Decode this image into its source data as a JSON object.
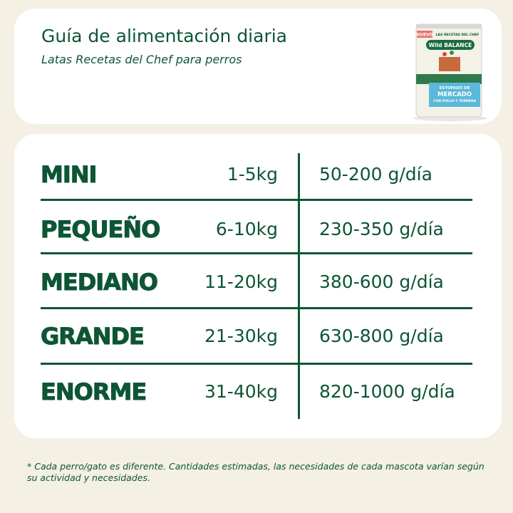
{
  "header": {
    "title": "Guía de alimentación diaria",
    "subtitle": "Latas Recetas del Chef para perros"
  },
  "product_image": {
    "badge": "NUEVO",
    "line": "LAS RECETAS DEL CHEF",
    "brand": "Wild BALANCE",
    "recipe": "ESTOFADO DE",
    "recipe_name": "MERCADO",
    "recipe_detail": "CON POLLO Y TERNERA"
  },
  "table": {
    "rows": [
      {
        "size": "MINI",
        "weight": "1-5kg",
        "portion": "50-200 g/día"
      },
      {
        "size": "PEQUEÑO",
        "weight": "6-10kg",
        "portion": "230-350 g/día"
      },
      {
        "size": "MEDIANO",
        "weight": "11-20kg",
        "portion": "380-600 g/día"
      },
      {
        "size": "GRANDE",
        "weight": "21-30kg",
        "portion": "630-800 g/día"
      },
      {
        "size": "ENORME",
        "weight": "31-40kg",
        "portion": "820-1000 g/día"
      }
    ]
  },
  "footnote": "* Cada perro/gato es diferente. Cantidades estimadas, las necesidades de cada mascota varían según su actividad y necesidades.",
  "colors": {
    "brand_green": "#0d5535",
    "background": "#f4f0e3",
    "card": "#ffffff"
  }
}
